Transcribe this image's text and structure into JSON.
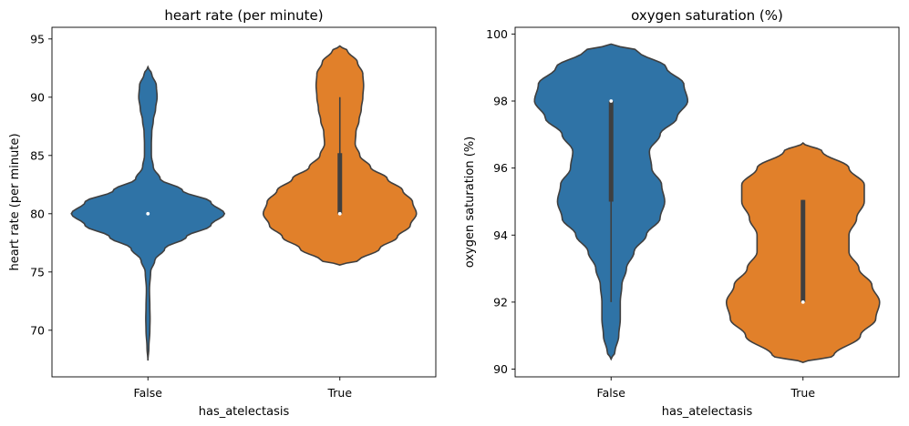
{
  "chart_data": [
    {
      "type": "violin",
      "title": "heart rate (per minute)",
      "xlabel": "has_atelectasis",
      "ylabel": "heart rate (per minute)",
      "categories": [
        "False",
        "True"
      ],
      "ylim": [
        66,
        96
      ],
      "yticks": [
        70,
        75,
        80,
        85,
        90,
        95
      ],
      "colors": [
        "#2f73a6",
        "#e1802a"
      ],
      "violins": [
        {
          "category": "False",
          "color": "#2f73a6",
          "range": [
            67.4,
            92.6
          ],
          "box": {
            "q1": 80.0,
            "median": 80.0,
            "q3": 80.0,
            "whisker_low": 80.0,
            "whisker_high": 80.0
          },
          "profile": [
            [
              67.4,
              0.0
            ],
            [
              68.5,
              0.012
            ],
            [
              70,
              0.025
            ],
            [
              71,
              0.028
            ],
            [
              72,
              0.025
            ],
            [
              73.5,
              0.02
            ],
            [
              75,
              0.035
            ],
            [
              76,
              0.09
            ],
            [
              77,
              0.22
            ],
            [
              78,
              0.5
            ],
            [
              79,
              0.82
            ],
            [
              80,
              1.0
            ],
            [
              81,
              0.82
            ],
            [
              82,
              0.45
            ],
            [
              83,
              0.16
            ],
            [
              84,
              0.07
            ],
            [
              85,
              0.045
            ],
            [
              86,
              0.045
            ],
            [
              87,
              0.05
            ],
            [
              88,
              0.07
            ],
            [
              89,
              0.1
            ],
            [
              90,
              0.12
            ],
            [
              91,
              0.11
            ],
            [
              92,
              0.05
            ],
            [
              92.6,
              0.0
            ]
          ]
        },
        {
          "category": "True",
          "color": "#e1802a",
          "range": [
            75.6,
            94.4
          ],
          "box": {
            "q1": 80.0,
            "median": 80.0,
            "q3": 85.2,
            "whisker_low": 80.0,
            "whisker_high": 90.0
          },
          "profile": [
            [
              75.6,
              0.0
            ],
            [
              76,
              0.25
            ],
            [
              77,
              0.52
            ],
            [
              78,
              0.75
            ],
            [
              79,
              0.92
            ],
            [
              80,
              1.0
            ],
            [
              81,
              0.95
            ],
            [
              82,
              0.82
            ],
            [
              83,
              0.62
            ],
            [
              84,
              0.4
            ],
            [
              85,
              0.26
            ],
            [
              86,
              0.2
            ],
            [
              87,
              0.21
            ],
            [
              88,
              0.25
            ],
            [
              89,
              0.28
            ],
            [
              90,
              0.3
            ],
            [
              91,
              0.31
            ],
            [
              92,
              0.3
            ],
            [
              93,
              0.23
            ],
            [
              94,
              0.1
            ],
            [
              94.4,
              0.0
            ]
          ]
        }
      ]
    },
    {
      "type": "violin",
      "title": "oxygen saturation (%)",
      "xlabel": "has_atelectasis",
      "ylabel": "oxygen saturation (%)",
      "categories": [
        "False",
        "True"
      ],
      "ylim": [
        89.77,
        100.2
      ],
      "yticks": [
        90,
        92,
        94,
        96,
        98,
        100
      ],
      "colors": [
        "#2f73a6",
        "#e1802a"
      ],
      "violins": [
        {
          "category": "False",
          "color": "#2f73a6",
          "range": [
            90.3,
            99.7
          ],
          "box": {
            "q1": 95.0,
            "median": 98.0,
            "q3": 98.0,
            "whisker_low": 92.0,
            "whisker_high": 98.0
          },
          "profile": [
            [
              90.3,
              0.0
            ],
            [
              90.5,
              0.05
            ],
            [
              91,
              0.1
            ],
            [
              91.5,
              0.12
            ],
            [
              92,
              0.12
            ],
            [
              92.5,
              0.14
            ],
            [
              93,
              0.2
            ],
            [
              93.5,
              0.3
            ],
            [
              94,
              0.46
            ],
            [
              94.5,
              0.64
            ],
            [
              95,
              0.7
            ],
            [
              95.5,
              0.66
            ],
            [
              96,
              0.53
            ],
            [
              96.5,
              0.5
            ],
            [
              97,
              0.64
            ],
            [
              97.5,
              0.86
            ],
            [
              98,
              1.0
            ],
            [
              98.5,
              0.95
            ],
            [
              99,
              0.72
            ],
            [
              99.5,
              0.35
            ],
            [
              99.7,
              0.0
            ]
          ]
        },
        {
          "category": "True",
          "color": "#e1802a",
          "range": [
            90.2,
            96.75
          ],
          "box": {
            "q1": 92.0,
            "median": 92.0,
            "q3": 95.05,
            "whisker_low": 92.0,
            "whisker_high": 95.05
          },
          "profile": [
            [
              90.2,
              0.0
            ],
            [
              90.4,
              0.4
            ],
            [
              91,
              0.75
            ],
            [
              91.5,
              0.95
            ],
            [
              92,
              1.0
            ],
            [
              92.5,
              0.9
            ],
            [
              93,
              0.73
            ],
            [
              93.5,
              0.6
            ],
            [
              94,
              0.6
            ],
            [
              94.5,
              0.7
            ],
            [
              95,
              0.8
            ],
            [
              95.5,
              0.8
            ],
            [
              96,
              0.6
            ],
            [
              96.5,
              0.25
            ],
            [
              96.75,
              0.0
            ]
          ]
        }
      ]
    }
  ]
}
